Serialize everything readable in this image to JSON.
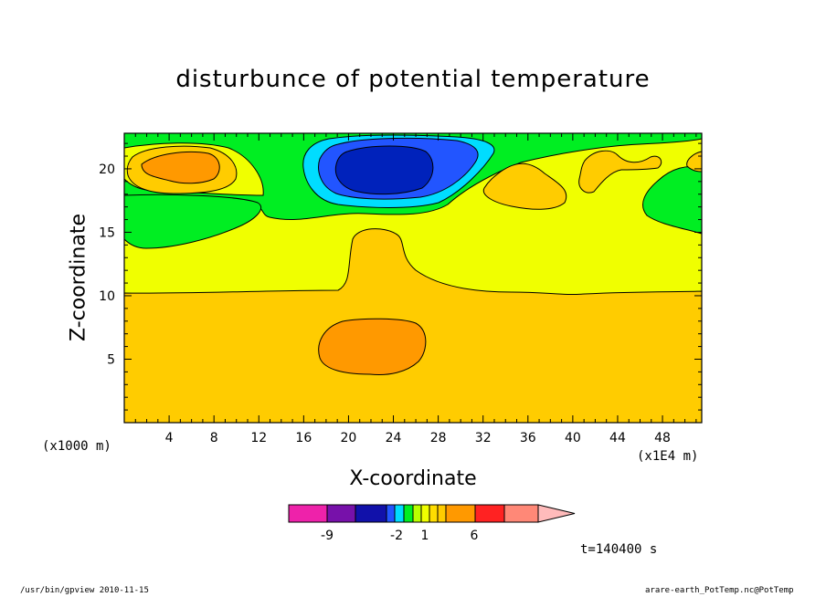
{
  "chart_data": {
    "type": "heatmap",
    "title": "disturbunce of potential temperature",
    "xlabel": "X-coordinate",
    "ylabel": "Z-coordinate",
    "x_unit_note": "(x1E4 m)",
    "y_unit_note": "(x1000 m)",
    "xlim": [
      0,
      51.5
    ],
    "ylim": [
      0,
      22.8
    ],
    "x_ticks": [
      "4",
      "8",
      "12",
      "16",
      "20",
      "24",
      "28",
      "32",
      "36",
      "40",
      "44",
      "48"
    ],
    "y_ticks": [
      "5",
      "10",
      "15",
      "20"
    ],
    "regions": [
      {
        "name": "yellow-band",
        "color": "#f0ff00"
      },
      {
        "name": "lower-orange",
        "color": "#ffcc00"
      },
      {
        "name": "warm-core",
        "color": "#ff9900"
      },
      {
        "name": "green-upper",
        "color": "#00ee22"
      },
      {
        "name": "cold-core",
        "color": "#0022bb"
      }
    ],
    "colorbar": {
      "colors": [
        "#ee22aa",
        "#7711aa",
        "#1111aa",
        "#2255ff",
        "#00ddff",
        "#00ee22",
        "#bbff00",
        "#f0ff00",
        "#ffdd00",
        "#ffcc00",
        "#ff9900",
        "#ff2222",
        "#ff8877",
        "#ffbbbb"
      ],
      "labels": [
        "-9",
        "-2",
        "1",
        "6"
      ]
    }
  },
  "time_label": "t=140400 s",
  "footer_left": "/usr/bin/gpview   2010-11-15",
  "footer_right": "arare-earth_PotTemp.nc@PotTemp"
}
